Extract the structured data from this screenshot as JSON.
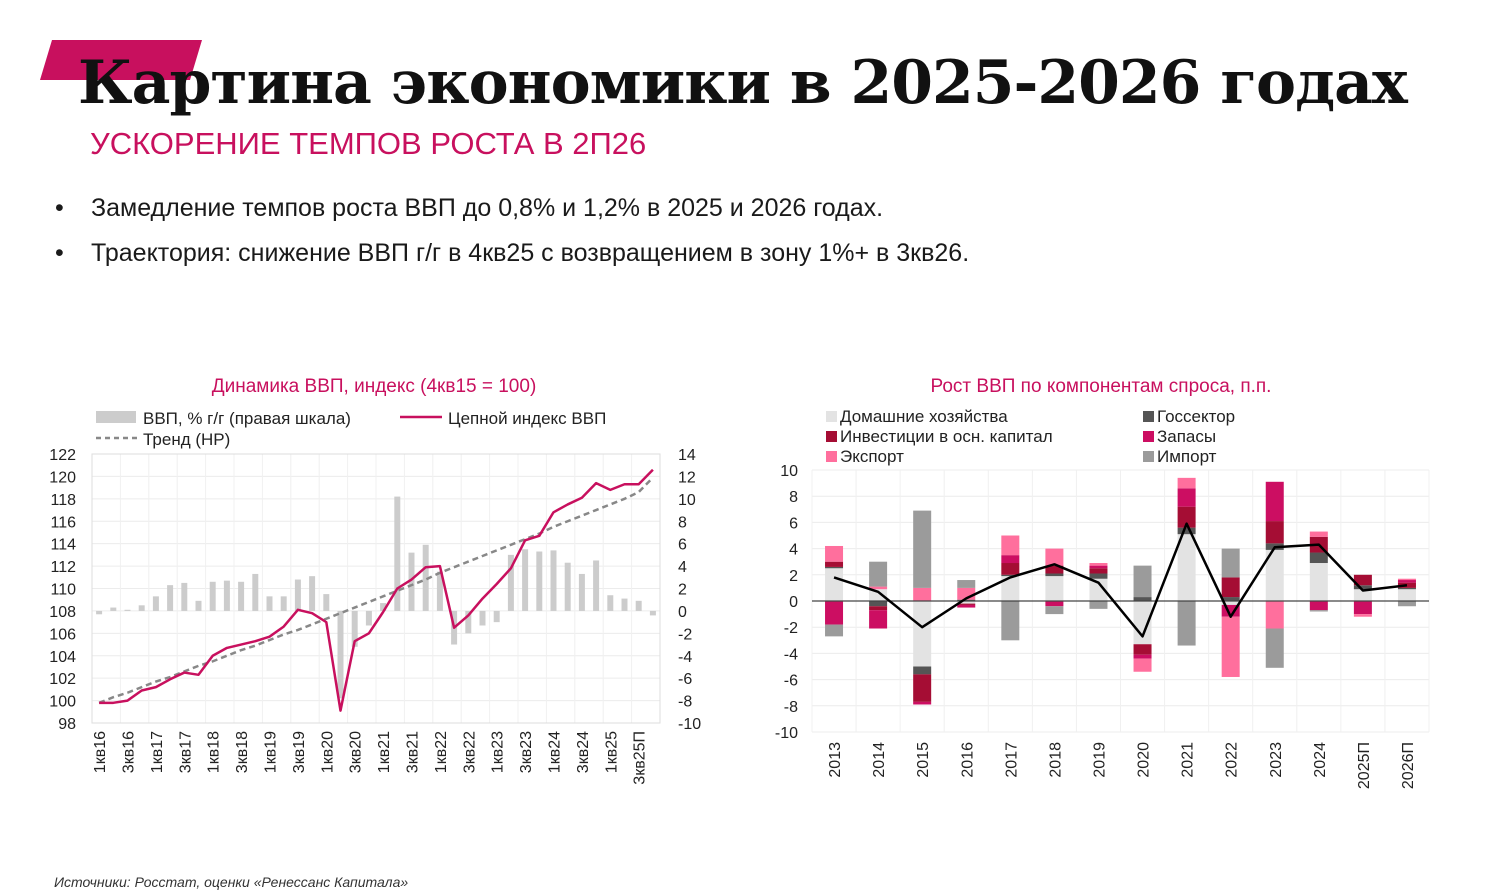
{
  "header": {
    "title": "Картина экономики в 2025-2026 годах",
    "subtitle": "УСКОРЕНИЕ ТЕМПОВ РОСТА В 2П26",
    "bullets": [
      "Замедление темпов роста ВВП до 0,8% и 1,2% в 2025 и 2026 годах.",
      "Траектория: снижение ВВП г/г в 4кв25 с возвращением в зону 1%+ в 3кв26."
    ]
  },
  "footer": {
    "source": "Источники: Росстат, оценки «Ренессанс Капитала»"
  },
  "colors": {
    "accent": "#c8105e",
    "gray_bar": "#cccccc",
    "trend": "#888888",
    "households": "#e3e3e3",
    "government": "#555555",
    "investment": "#a50d34",
    "inventories": "#cc0e62",
    "exports": "#ff6f9d",
    "imports": "#9b9b9b",
    "total_line": "#000000"
  },
  "chart_data": [
    {
      "type": "bar+line",
      "title": "Динамика ВВП, индекс (4кв15 = 100)",
      "legend": {
        "bars": "ВВП, % г/г (правая шкала)",
        "index": "Цепной индекс ВВП",
        "trend": "Тренд (HP)"
      },
      "left_axis": {
        "min": 98,
        "max": 122,
        "step": 2
      },
      "right_axis": {
        "min": -10,
        "max": 14,
        "step": 2
      },
      "x_tick_labels": [
        "1кв16",
        "3кв16",
        "1кв17",
        "3кв17",
        "1кв18",
        "3кв18",
        "1кв19",
        "3кв19",
        "1кв20",
        "3кв20",
        "1кв21",
        "3кв21",
        "1кв22",
        "3кв22",
        "1кв23",
        "3кв23",
        "1кв24",
        "3кв24",
        "1кв25",
        "3кв25П"
      ],
      "quarters": [
        "1кв16",
        "2кв16",
        "3кв16",
        "4кв16",
        "1кв17",
        "2кв17",
        "3кв17",
        "4кв17",
        "1кв18",
        "2кв18",
        "3кв18",
        "4кв18",
        "1кв19",
        "2кв19",
        "3кв19",
        "4кв19",
        "1кв20",
        "2кв20",
        "3кв20",
        "4кв20",
        "1кв21",
        "2кв21",
        "3кв21",
        "4кв21",
        "1кв22",
        "2кв22",
        "3кв22",
        "4кв22",
        "1кв23",
        "2кв23",
        "3кв23",
        "4кв23",
        "1кв24",
        "2кв24",
        "3кв24",
        "4кв24",
        "1кв25",
        "2кв25",
        "3кв25П",
        "4кв25П"
      ],
      "gdp_yoy": [
        -0.3,
        0.3,
        0.1,
        0.5,
        1.3,
        2.3,
        2.5,
        0.9,
        2.6,
        2.7,
        2.6,
        3.3,
        1.3,
        1.3,
        2.8,
        3.1,
        1.5,
        -7.8,
        -3.2,
        -1.3,
        0.7,
        10.2,
        5.2,
        5.9,
        3.5,
        -3.0,
        -2.0,
        -1.3,
        -1.0,
        5.0,
        5.5,
        5.3,
        5.4,
        4.3,
        3.3,
        4.5,
        1.4,
        1.1,
        0.9,
        -0.4
      ],
      "chain_index": [
        99.8,
        99.8,
        100.0,
        100.9,
        101.2,
        101.9,
        102.5,
        102.3,
        104.0,
        104.7,
        105.0,
        105.3,
        105.7,
        106.6,
        108.1,
        107.8,
        107.0,
        99.1,
        105.3,
        106.0,
        107.9,
        110.0,
        110.8,
        111.9,
        112.0,
        106.5,
        107.6,
        109.1,
        110.4,
        111.8,
        114.3,
        114.7,
        116.8,
        117.5,
        118.1,
        119.4,
        118.8,
        119.3,
        119.3,
        120.6
      ],
      "trend_index": [
        99.8,
        100.3,
        100.7,
        101.2,
        101.7,
        102.1,
        102.6,
        103.1,
        103.5,
        104.0,
        104.5,
        104.9,
        105.4,
        105.9,
        106.3,
        106.8,
        107.3,
        107.8,
        108.3,
        108.8,
        109.3,
        109.8,
        110.3,
        110.8,
        111.4,
        111.9,
        112.4,
        112.9,
        113.4,
        113.9,
        114.4,
        114.9,
        115.5,
        116.0,
        116.5,
        117.0,
        117.5,
        118.0,
        118.6,
        119.9
      ]
    },
    {
      "type": "stacked_bar+line",
      "title": "Рост ВВП по компонентам спроса, п.п.",
      "y_axis": {
        "min": -10,
        "max": 10,
        "step": 2
      },
      "categories": [
        "2013",
        "2014",
        "2015",
        "2016",
        "2017",
        "2018",
        "2019",
        "2020",
        "2021",
        "2022",
        "2023",
        "2024",
        "2025П",
        "2026П"
      ],
      "series": [
        {
          "name": "Домашние хозяйства",
          "color_key": "households",
          "values": [
            2.5,
            0.9,
            -5.0,
            -0.2,
            1.9,
            1.9,
            1.7,
            -3.3,
            5.1,
            -0.3,
            3.9,
            2.9,
            0.9,
            0.9
          ]
        },
        {
          "name": "Госсектор",
          "color_key": "government",
          "values": [
            0.1,
            -0.4,
            -0.6,
            0.1,
            0.1,
            0.2,
            0.4,
            0.3,
            0.5,
            0.3,
            0.5,
            0.8,
            0.3,
            0.1
          ]
        },
        {
          "name": "Инвестиции в осн. капитал",
          "color_key": "investment",
          "values": [
            0.4,
            -0.3,
            -2.1,
            -0.1,
            0.9,
            0.6,
            0.4,
            -0.8,
            1.6,
            1.5,
            1.7,
            1.2,
            0.8,
            0.4
          ]
        },
        {
          "name": "Запасы",
          "color_key": "inventories",
          "values": [
            -1.8,
            -1.4,
            -0.2,
            -0.2,
            0.6,
            -0.4,
            0.2,
            -0.3,
            1.4,
            -0.9,
            3.0,
            -0.7,
            -1.0,
            0.2
          ]
        },
        {
          "name": "Экспорт",
          "color_key": "exports",
          "values": [
            1.2,
            0.2,
            1.0,
            0.9,
            1.5,
            1.3,
            0.2,
            -1.0,
            0.8,
            -4.6,
            -2.1,
            0.4,
            -0.2,
            0.1
          ]
        },
        {
          "name": "Импорт",
          "color_key": "imports",
          "values": [
            -0.9,
            1.9,
            5.9,
            0.6,
            -3.0,
            -0.6,
            -0.6,
            2.4,
            -3.4,
            2.2,
            -3.0,
            -0.1,
            0.0,
            -0.4
          ]
        }
      ],
      "total_gdp_growth": [
        1.8,
        0.7,
        -2.0,
        0.2,
        1.8,
        2.8,
        1.4,
        -2.7,
        5.9,
        -1.2,
        4.1,
        4.3,
        0.8,
        1.2
      ]
    }
  ]
}
